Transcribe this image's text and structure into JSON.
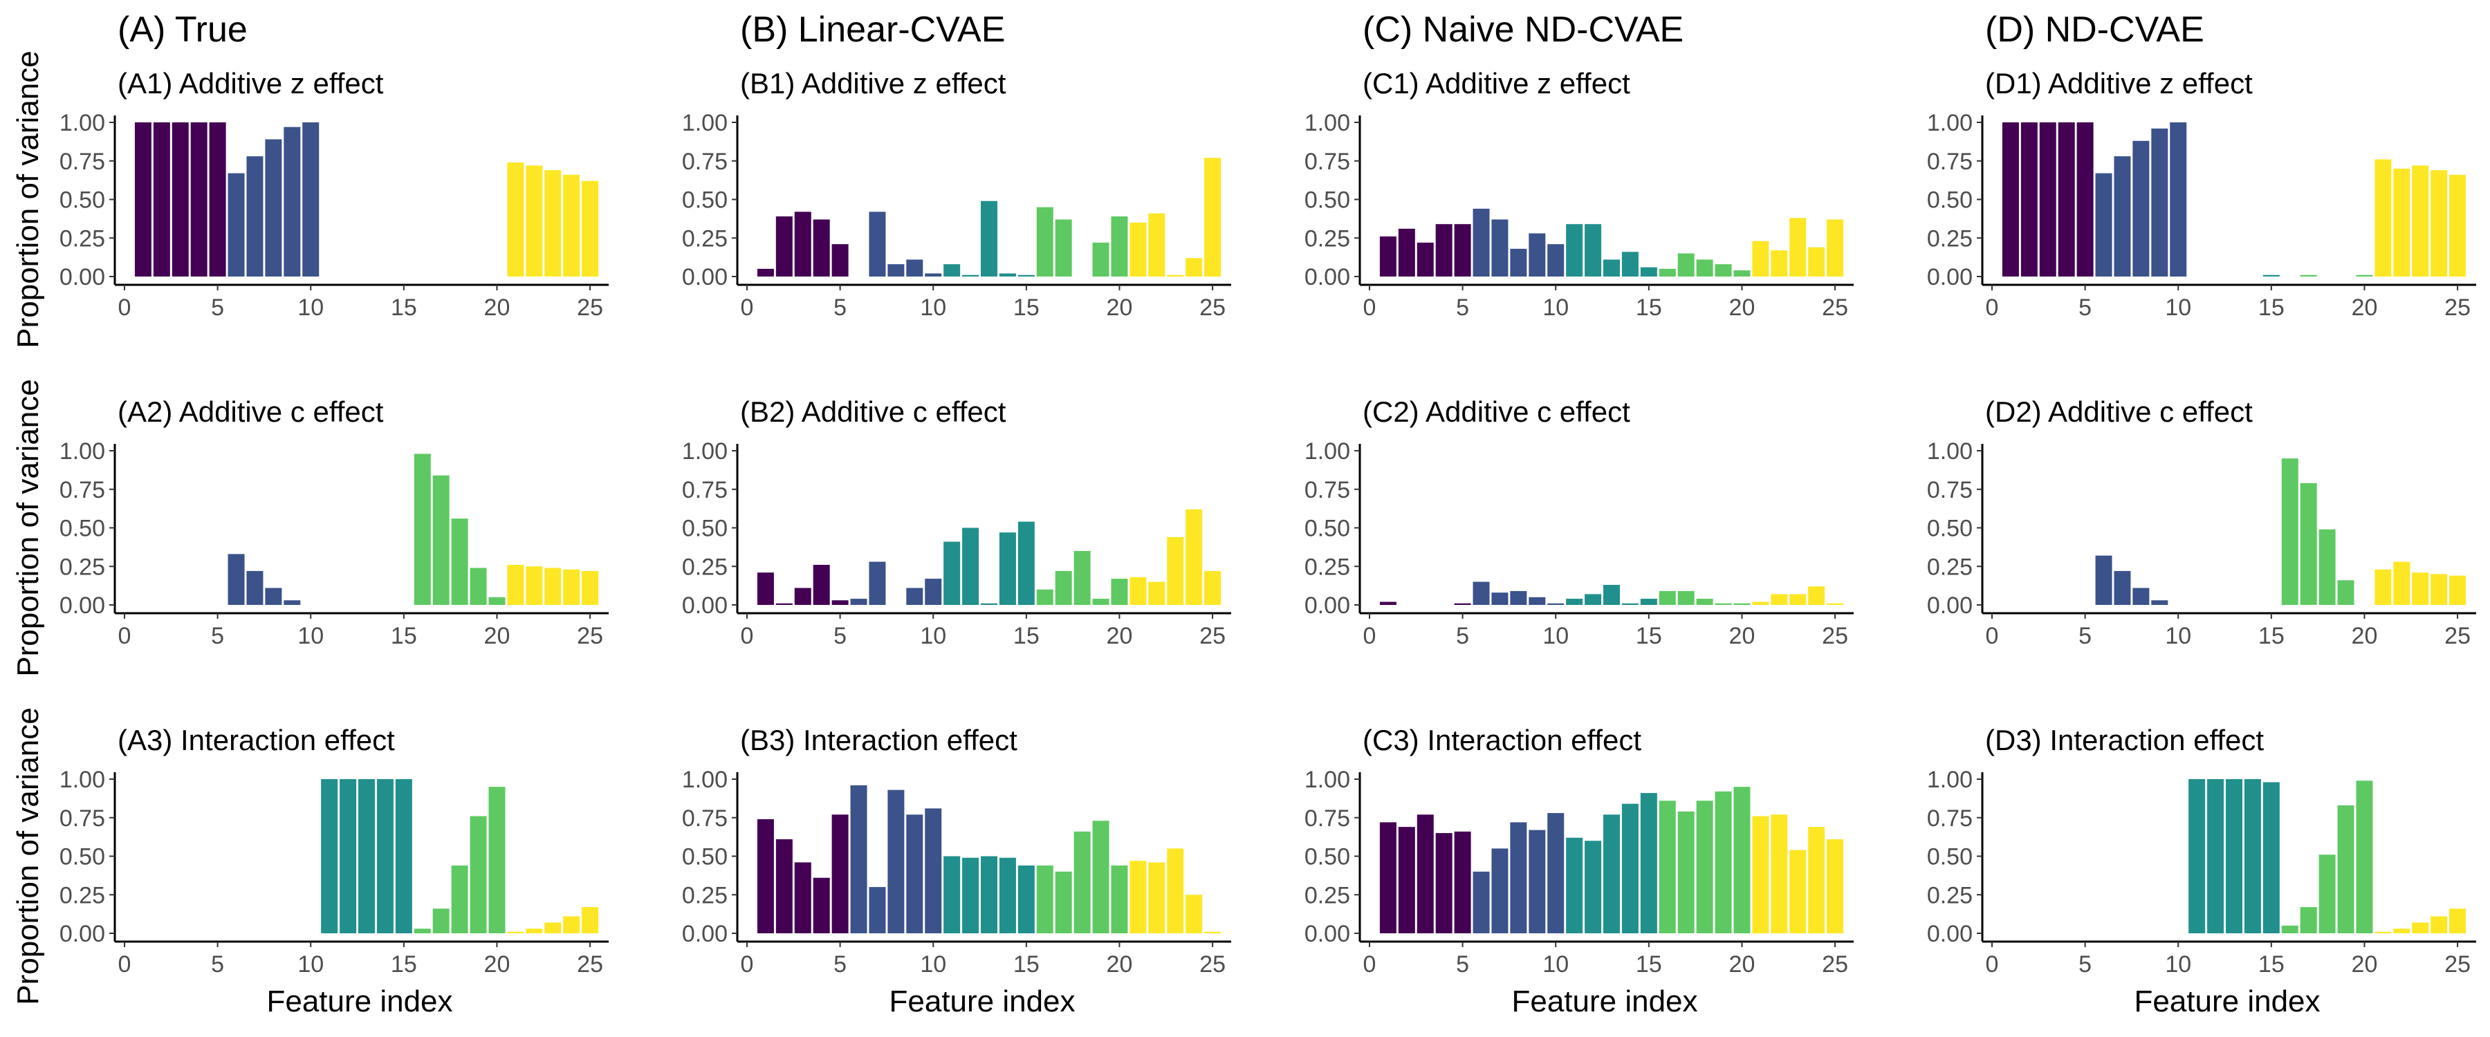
{
  "colors": [
    "#440154",
    "#3b528b",
    "#21908c",
    "#5ec962",
    "#fde725"
  ],
  "axis": {
    "y_label": "Proportion of variance",
    "x_label": "Feature index",
    "y_ticks": [
      "0.00",
      "0.25",
      "0.50",
      "0.75",
      "1.00"
    ],
    "x_ticks": [
      "0",
      "5",
      "10",
      "15",
      "20",
      "25"
    ]
  },
  "chart_data": [
    {
      "type": "bar",
      "column_title": "(A) True",
      "title": "(A1) Additive z effect",
      "xlabel": "Feature index",
      "ylabel": "Proportion of variance",
      "ylim": [
        0,
        1
      ],
      "xlim": [
        0,
        26
      ],
      "x": [
        1,
        2,
        3,
        4,
        5,
        6,
        7,
        8,
        9,
        10,
        11,
        12,
        13,
        14,
        15,
        16,
        17,
        18,
        19,
        20,
        21,
        22,
        23,
        24,
        25
      ],
      "values": [
        1.0,
        1.0,
        1.0,
        1.0,
        1.0,
        0.67,
        0.78,
        0.89,
        0.97,
        1.0,
        0,
        0,
        0,
        0,
        0,
        0,
        0,
        0,
        0,
        0,
        0.74,
        0.72,
        0.69,
        0.66,
        0.62
      ]
    },
    {
      "type": "bar",
      "column_title": "(B) Linear-CVAE",
      "title": "(B1) Additive z effect",
      "xlabel": "Feature index",
      "ylabel": "Proportion of variance",
      "ylim": [
        0,
        1
      ],
      "xlim": [
        0,
        26
      ],
      "x": [
        1,
        2,
        3,
        4,
        5,
        6,
        7,
        8,
        9,
        10,
        11,
        12,
        13,
        14,
        15,
        16,
        17,
        18,
        19,
        20,
        21,
        22,
        23,
        24,
        25
      ],
      "values": [
        0.05,
        0.39,
        0.42,
        0.37,
        0.21,
        0,
        0.42,
        0.08,
        0.11,
        0.02,
        0.08,
        0.01,
        0.49,
        0.02,
        0.01,
        0.45,
        0.37,
        0,
        0.22,
        0.39,
        0.35,
        0.41,
        0.01,
        0.12,
        0.77
      ]
    },
    {
      "type": "bar",
      "column_title": "(C) Naive ND-CVAE",
      "title": "(C1) Additive z effect",
      "xlabel": "Feature index",
      "ylabel": "Proportion of variance",
      "ylim": [
        0,
        1
      ],
      "xlim": [
        0,
        26
      ],
      "x": [
        1,
        2,
        3,
        4,
        5,
        6,
        7,
        8,
        9,
        10,
        11,
        12,
        13,
        14,
        15,
        16,
        17,
        18,
        19,
        20,
        21,
        22,
        23,
        24,
        25
      ],
      "values": [
        0.26,
        0.31,
        0.22,
        0.34,
        0.34,
        0.44,
        0.37,
        0.18,
        0.28,
        0.21,
        0.34,
        0.34,
        0.11,
        0.16,
        0.06,
        0.05,
        0.15,
        0.11,
        0.08,
        0.04,
        0.23,
        0.17,
        0.38,
        0.19,
        0.37
      ]
    },
    {
      "type": "bar",
      "column_title": "(D) ND-CVAE",
      "title": "(D1) Additive z effect",
      "xlabel": "Feature index",
      "ylabel": "Proportion of variance",
      "ylim": [
        0,
        1
      ],
      "xlim": [
        0,
        26
      ],
      "x": [
        1,
        2,
        3,
        4,
        5,
        6,
        7,
        8,
        9,
        10,
        11,
        12,
        13,
        14,
        15,
        16,
        17,
        18,
        19,
        20,
        21,
        22,
        23,
        24,
        25
      ],
      "values": [
        1.0,
        1.0,
        1.0,
        1.0,
        1.0,
        0.67,
        0.78,
        0.88,
        0.96,
        1.0,
        0,
        0,
        0,
        0,
        0.01,
        0,
        0.01,
        0,
        0,
        0.01,
        0.76,
        0.7,
        0.72,
        0.69,
        0.66
      ]
    },
    {
      "type": "bar",
      "column_title": "",
      "title": "(A2) Additive c effect",
      "xlabel": "Feature index",
      "ylabel": "Proportion of variance",
      "ylim": [
        0,
        1
      ],
      "xlim": [
        0,
        26
      ],
      "x": [
        1,
        2,
        3,
        4,
        5,
        6,
        7,
        8,
        9,
        10,
        11,
        12,
        13,
        14,
        15,
        16,
        17,
        18,
        19,
        20,
        21,
        22,
        23,
        24,
        25
      ],
      "values": [
        0,
        0,
        0,
        0,
        0,
        0.33,
        0.22,
        0.11,
        0.03,
        0,
        0,
        0,
        0,
        0,
        0,
        0.98,
        0.84,
        0.56,
        0.24,
        0.05,
        0.26,
        0.25,
        0.24,
        0.23,
        0.22
      ]
    },
    {
      "type": "bar",
      "column_title": "",
      "title": "(B2) Additive c effect",
      "xlabel": "Feature index",
      "ylabel": "Proportion of variance",
      "ylim": [
        0,
        1
      ],
      "xlim": [
        0,
        26
      ],
      "x": [
        1,
        2,
        3,
        4,
        5,
        6,
        7,
        8,
        9,
        10,
        11,
        12,
        13,
        14,
        15,
        16,
        17,
        18,
        19,
        20,
        21,
        22,
        23,
        24,
        25
      ],
      "values": [
        0.21,
        0.01,
        0.11,
        0.26,
        0.03,
        0.04,
        0.28,
        0,
        0.11,
        0.17,
        0.41,
        0.5,
        0.01,
        0.47,
        0.54,
        0.1,
        0.22,
        0.35,
        0.04,
        0.17,
        0.18,
        0.15,
        0.44,
        0.62,
        0.22
      ]
    },
    {
      "type": "bar",
      "column_title": "",
      "title": "(C2) Additive c effect",
      "xlabel": "Feature index",
      "ylabel": "Proportion of variance",
      "ylim": [
        0,
        1
      ],
      "xlim": [
        0,
        26
      ],
      "x": [
        1,
        2,
        3,
        4,
        5,
        6,
        7,
        8,
        9,
        10,
        11,
        12,
        13,
        14,
        15,
        16,
        17,
        18,
        19,
        20,
        21,
        22,
        23,
        24,
        25
      ],
      "values": [
        0.02,
        0,
        0,
        0,
        0.01,
        0.15,
        0.08,
        0.09,
        0.05,
        0.01,
        0.04,
        0.07,
        0.13,
        0.01,
        0.04,
        0.09,
        0.09,
        0.04,
        0.01,
        0.01,
        0.02,
        0.07,
        0.07,
        0.12,
        0.01
      ]
    },
    {
      "type": "bar",
      "column_title": "",
      "title": "(D2) Additive c effect",
      "xlabel": "Feature index",
      "ylabel": "Proportion of variance",
      "ylim": [
        0,
        1
      ],
      "xlim": [
        0,
        26
      ],
      "x": [
        1,
        2,
        3,
        4,
        5,
        6,
        7,
        8,
        9,
        10,
        11,
        12,
        13,
        14,
        15,
        16,
        17,
        18,
        19,
        20,
        21,
        22,
        23,
        24,
        25
      ],
      "values": [
        0,
        0,
        0,
        0,
        0,
        0.32,
        0.22,
        0.11,
        0.03,
        0,
        0,
        0,
        0,
        0,
        0,
        0.95,
        0.79,
        0.49,
        0.16,
        0,
        0.23,
        0.28,
        0.21,
        0.2,
        0.19
      ]
    },
    {
      "type": "bar",
      "column_title": "",
      "title": "(A3) Interaction effect",
      "xlabel": "Feature index",
      "ylabel": "Proportion of variance",
      "ylim": [
        0,
        1
      ],
      "xlim": [
        0,
        26
      ],
      "x": [
        1,
        2,
        3,
        4,
        5,
        6,
        7,
        8,
        9,
        10,
        11,
        12,
        13,
        14,
        15,
        16,
        17,
        18,
        19,
        20,
        21,
        22,
        23,
        24,
        25
      ],
      "values": [
        0,
        0,
        0,
        0,
        0,
        0,
        0,
        0,
        0,
        0,
        1.0,
        1.0,
        1.0,
        1.0,
        1.0,
        0.03,
        0.16,
        0.44,
        0.76,
        0.95,
        0.01,
        0.03,
        0.07,
        0.11,
        0.17
      ]
    },
    {
      "type": "bar",
      "column_title": "",
      "title": "(B3) Interaction effect",
      "xlabel": "Feature index",
      "ylabel": "Proportion of variance",
      "ylim": [
        0,
        1
      ],
      "xlim": [
        0,
        26
      ],
      "x": [
        1,
        2,
        3,
        4,
        5,
        6,
        7,
        8,
        9,
        10,
        11,
        12,
        13,
        14,
        15,
        16,
        17,
        18,
        19,
        20,
        21,
        22,
        23,
        24,
        25
      ],
      "values": [
        0.74,
        0.61,
        0.46,
        0.36,
        0.77,
        0.96,
        0.3,
        0.93,
        0.77,
        0.81,
        0.5,
        0.49,
        0.5,
        0.49,
        0.44,
        0.44,
        0.4,
        0.66,
        0.73,
        0.44,
        0.47,
        0.46,
        0.55,
        0.25,
        0.01
      ]
    },
    {
      "type": "bar",
      "column_title": "",
      "title": "(C3) Interaction effect",
      "xlabel": "Feature index",
      "ylabel": "Proportion of variance",
      "ylim": [
        0,
        1
      ],
      "xlim": [
        0,
        26
      ],
      "x": [
        1,
        2,
        3,
        4,
        5,
        6,
        7,
        8,
        9,
        10,
        11,
        12,
        13,
        14,
        15,
        16,
        17,
        18,
        19,
        20,
        21,
        22,
        23,
        24,
        25
      ],
      "values": [
        0.72,
        0.69,
        0.77,
        0.65,
        0.66,
        0.4,
        0.55,
        0.72,
        0.67,
        0.78,
        0.62,
        0.6,
        0.77,
        0.84,
        0.91,
        0.86,
        0.79,
        0.86,
        0.92,
        0.95,
        0.76,
        0.77,
        0.54,
        0.69,
        0.61
      ]
    },
    {
      "type": "bar",
      "column_title": "",
      "title": "(D3) Interaction effect",
      "xlabel": "Feature index",
      "ylabel": "Proportion of variance",
      "ylim": [
        0,
        1
      ],
      "xlim": [
        0,
        26
      ],
      "x": [
        1,
        2,
        3,
        4,
        5,
        6,
        7,
        8,
        9,
        10,
        11,
        12,
        13,
        14,
        15,
        16,
        17,
        18,
        19,
        20,
        21,
        22,
        23,
        24,
        25
      ],
      "values": [
        0,
        0,
        0,
        0,
        0,
        0,
        0,
        0,
        0,
        0,
        1.0,
        1.0,
        1.0,
        1.0,
        0.98,
        0.05,
        0.17,
        0.51,
        0.83,
        0.99,
        0.01,
        0.03,
        0.07,
        0.11,
        0.16
      ]
    }
  ]
}
